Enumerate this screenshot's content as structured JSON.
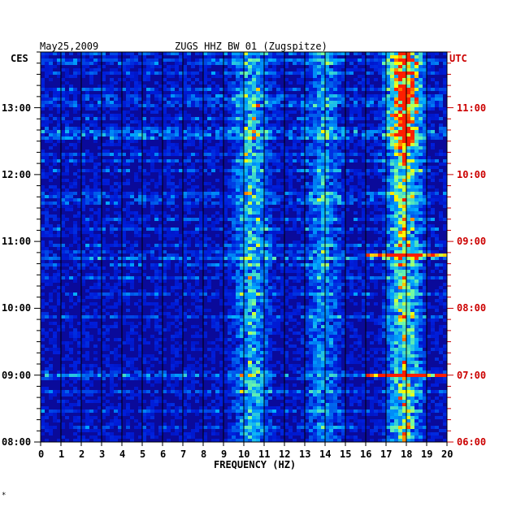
{
  "header": {
    "date": "May25,2009",
    "station": "ZUGS HHZ BW 01 (Zugspitze)",
    "left_tz": "CES",
    "right_tz": "UTC"
  },
  "chart_data": {
    "type": "heatmap",
    "title": "ZUGS HHZ BW 01 (Zugspitze)",
    "xlabel": "FREQUENCY (HZ)",
    "xlim": [
      0,
      20
    ],
    "x_ticks": [
      "0",
      "1",
      "2",
      "3",
      "4",
      "5",
      "6",
      "7",
      "8",
      "9",
      "10",
      "11",
      "12",
      "13",
      "14",
      "15",
      "16",
      "17",
      "18",
      "19",
      "20"
    ],
    "left_time_labels": [
      "08:00",
      "09:00",
      "10:00",
      "11:00",
      "12:00",
      "13:00"
    ],
    "right_time_labels": [
      "06:00",
      "07:00",
      "08:00",
      "09:00",
      "10:00",
      "11:00"
    ],
    "time_range_ces": [
      "08:00",
      "13:50"
    ],
    "colors": {
      "background": "#0a0a9a",
      "left_labels": "#000000",
      "right_labels": "#cc0000",
      "low": "#0000aa",
      "mid": "#00aaff",
      "high": "#ffff00",
      "peak": "#ff0000"
    },
    "energy_bands_hz": [
      {
        "center": 10.4,
        "strength": 0.6
      },
      {
        "center": 13.9,
        "strength": 0.45
      },
      {
        "center": 17.9,
        "strength": 0.85
      }
    ],
    "strong_events_ces": [
      {
        "time": "12:35",
        "note": "broadband noise"
      },
      {
        "time": "10:48",
        "note": "strong band 16-20 Hz"
      },
      {
        "time": "09:00",
        "note": "strong band 16-20 Hz"
      }
    ]
  },
  "footer": {
    "mark": "*"
  }
}
